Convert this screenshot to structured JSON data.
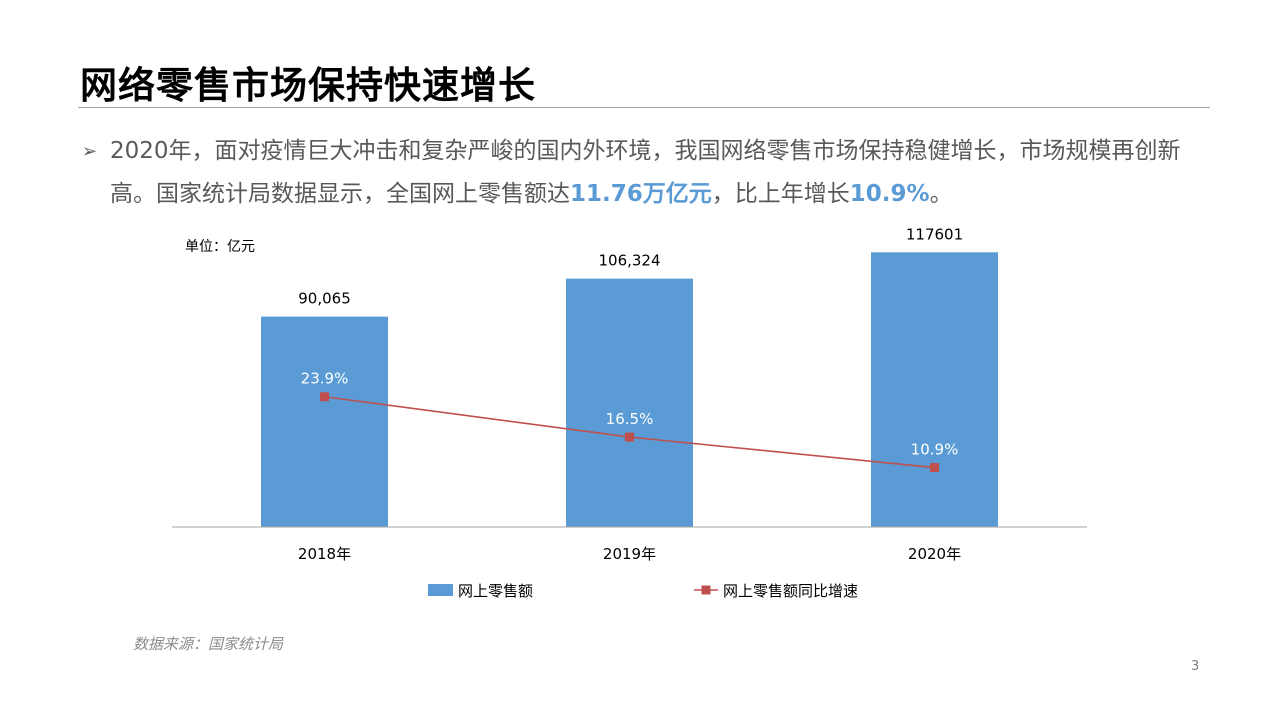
{
  "slide": {
    "title": "网络零售市场保持快速增长",
    "page_number": "3"
  },
  "bullet": {
    "marker": "➢",
    "text_before": "2020年，面对疫情巨大冲击和复杂严峻的国内外环境，我国网络零售市场保持稳健增长，市场规模再创新高。国家统计局数据显示，全国网上零售额达",
    "highlight_amount": "11.76万亿元",
    "text_middle": "，比上年增长",
    "highlight_growth": "10.9%",
    "text_end": "。"
  },
  "colors": {
    "bar": "#5b9bd5",
    "line": "#c0504d",
    "highlight": "#5b9bd5"
  },
  "chart_data": {
    "type": "bar+line",
    "unit_label": "单位：亿元",
    "categories": [
      "2018年",
      "2019年",
      "2020年"
    ],
    "series": [
      {
        "name": "网上零售额",
        "type": "bar",
        "values": [
          90065,
          106324,
          117601
        ],
        "data_labels": [
          "90,065",
          "106,324",
          "117601"
        ]
      },
      {
        "name": "网上零售额同比增速",
        "type": "line",
        "values": [
          23.9,
          16.5,
          10.9
        ],
        "data_labels": [
          "23.9%",
          "16.5%",
          "10.9%"
        ]
      }
    ],
    "primary_ylim": [
      0,
      140000
    ],
    "secondary_ylim": [
      0,
      60
    ],
    "legend_position": "bottom",
    "grid": false
  },
  "source": "数据来源：国家统计局"
}
